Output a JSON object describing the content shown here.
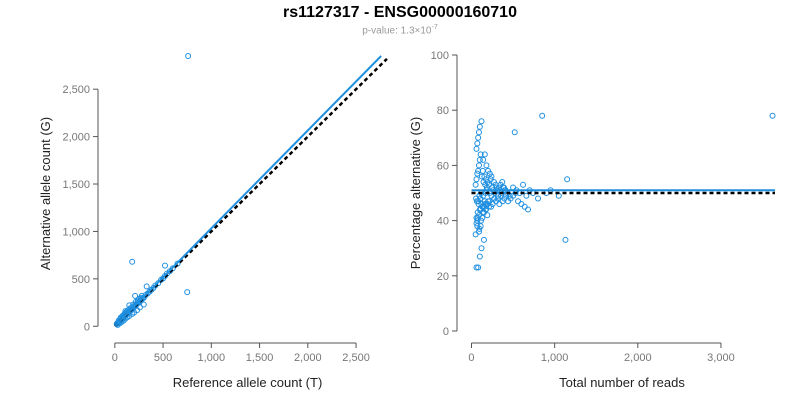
{
  "title": "rs1127317 - ENSG00000160710",
  "subtitle_prefix": "p-value: 1.3×10",
  "subtitle_exponent": "-7",
  "colors": {
    "points": "#1f8fe0",
    "fit": "#1f8fe0",
    "reference": "#000000",
    "axis": "#555555"
  },
  "chart_data": [
    {
      "type": "scatter",
      "xlabel": "Reference allele count (T)",
      "ylabel": "Alternative allele count (G)",
      "xlim": [
        -50,
        2800
      ],
      "ylim": [
        -50,
        2850
      ],
      "xticks": [
        0,
        500,
        1000,
        1500,
        2000,
        2500
      ],
      "xtick_labels": [
        "0",
        "500",
        "1,000",
        "1,500",
        "2,000",
        "2,500"
      ],
      "yticks": [
        0,
        500,
        1000,
        1500,
        2000,
        2500
      ],
      "ytick_labels": [
        "0",
        "500",
        "1,000",
        "1,500",
        "2,000",
        "2,500"
      ],
      "fit_line": {
        "x": [
          0,
          2760
        ],
        "y": [
          0,
          2850
        ]
      },
      "reference_line": {
        "x": [
          0,
          2820
        ],
        "y": [
          0,
          2820
        ]
      },
      "points": {
        "x": [
          760,
          20,
          25,
          30,
          35,
          40,
          45,
          50,
          55,
          60,
          65,
          70,
          75,
          80,
          85,
          90,
          95,
          100,
          110,
          120,
          130,
          140,
          150,
          160,
          170,
          180,
          190,
          200,
          210,
          220,
          230,
          240,
          250,
          260,
          270,
          280,
          290,
          300,
          320,
          340,
          360,
          380,
          400,
          420,
          450,
          480,
          500,
          520,
          540,
          570,
          600,
          650,
          30,
          50,
          70,
          90,
          110,
          130,
          150,
          180,
          200,
          230,
          260,
          300,
          60,
          80,
          100,
          120,
          140,
          160,
          190,
          220,
          250,
          280,
          40,
          60,
          80,
          100,
          130,
          170,
          210,
          240,
          270,
          180,
          750,
          520,
          330,
          150,
          210,
          110
        ],
        "y": [
          2850,
          25,
          30,
          30,
          40,
          45,
          50,
          50,
          60,
          60,
          65,
          75,
          75,
          80,
          85,
          95,
          95,
          105,
          110,
          125,
          130,
          140,
          160,
          165,
          170,
          185,
          190,
          205,
          210,
          225,
          235,
          245,
          255,
          260,
          275,
          285,
          295,
          300,
          330,
          345,
          365,
          385,
          405,
          430,
          455,
          490,
          505,
          530,
          555,
          580,
          610,
          660,
          15,
          30,
          45,
          60,
          80,
          95,
          110,
          130,
          145,
          170,
          200,
          230,
          90,
          110,
          130,
          150,
          170,
          190,
          230,
          260,
          290,
          320,
          60,
          80,
          100,
          120,
          150,
          190,
          230,
          270,
          300,
          680,
          360,
          640,
          420,
          220,
          320,
          160
        ]
      }
    },
    {
      "type": "scatter",
      "xlabel": "Total number of reads",
      "ylabel": "Percentage alternative (G)",
      "xlim": [
        -30,
        3650
      ],
      "ylim": [
        0,
        100
      ],
      "xticks": [
        0,
        1000,
        2000,
        3000
      ],
      "xtick_labels": [
        "0",
        "1,000",
        "2,000",
        "3,000"
      ],
      "yticks": [
        0,
        20,
        40,
        60,
        80,
        100
      ],
      "ytick_labels": [
        "0",
        "20",
        "40",
        "60",
        "80",
        "100"
      ],
      "fit_line": {
        "x": [
          0,
          3650
        ],
        "y": [
          51,
          51
        ]
      },
      "reference_line": {
        "x": [
          0,
          3650
        ],
        "y": [
          50,
          50
        ]
      },
      "points": {
        "x": [
          3620,
          1130,
          850,
          520,
          60,
          80,
          100,
          120,
          150,
          90,
          70,
          60,
          75,
          110,
          130,
          160,
          200,
          55,
          65,
          85,
          95,
          105,
          115,
          140,
          170,
          180,
          220,
          240,
          260,
          280,
          300,
          320,
          340,
          360,
          380,
          400,
          430,
          460,
          500,
          540,
          580,
          620,
          660,
          700,
          740,
          800,
          900,
          950,
          1050,
          1150,
          50,
          60,
          70,
          80,
          90,
          100,
          110,
          125,
          135,
          145,
          155,
          165,
          175,
          185,
          195,
          210,
          230,
          250,
          270,
          290,
          310,
          330,
          350,
          370,
          390,
          410,
          60,
          70,
          80,
          90,
          100,
          120,
          140,
          160,
          180,
          200,
          220,
          240,
          70,
          90,
          110,
          130,
          150,
          170,
          190,
          210,
          80,
          100,
          120,
          140,
          160,
          180,
          50,
          60,
          75,
          95,
          115,
          135,
          155,
          175,
          195,
          215,
          235,
          255,
          275,
          295,
          315,
          335,
          355,
          375,
          395,
          415,
          440,
          470,
          500,
          530,
          560,
          600,
          640,
          680
        ],
        "y": [
          78,
          33,
          78,
          72,
          23,
          23,
          27,
          30,
          33,
          36,
          38,
          41,
          43,
          44,
          45,
          46,
          47,
          48,
          47,
          46,
          49,
          48,
          50,
          49,
          50,
          51,
          50,
          49,
          51,
          50,
          52,
          49,
          51,
          50,
          52,
          51,
          50,
          49,
          52,
          51,
          50,
          53,
          49,
          51,
          50,
          48,
          50,
          51,
          49,
          55,
          53,
          55,
          57,
          58,
          60,
          62,
          64,
          56,
          58,
          54,
          56,
          53,
          55,
          52,
          54,
          53,
          55,
          52,
          54,
          53,
          51,
          52,
          53,
          54,
          52,
          51,
          66,
          68,
          70,
          72,
          74,
          76,
          62,
          64,
          60,
          58,
          57,
          56,
          40,
          42,
          38,
          41,
          43,
          44,
          42,
          45,
          47,
          44,
          46,
          45,
          47,
          46,
          35,
          39,
          41,
          37,
          40,
          43,
          45,
          44,
          46,
          47,
          45,
          46,
          48,
          47,
          48,
          46,
          49,
          47,
          48,
          49,
          47,
          48,
          49,
          50,
          47,
          46,
          45,
          44
        ]
      }
    }
  ]
}
